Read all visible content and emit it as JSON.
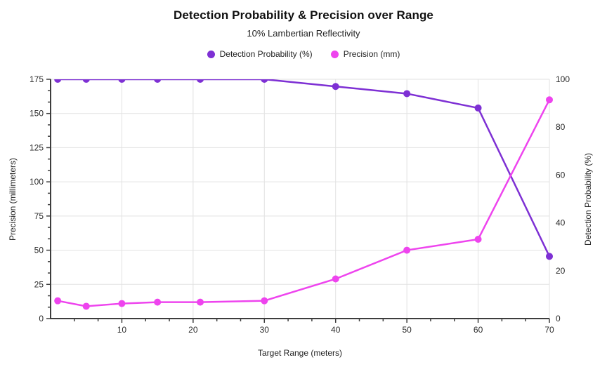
{
  "header": {
    "title": "Detection Probability & Precision over Range",
    "subtitle": "10% Lambertian Reflectivity"
  },
  "chart_data": {
    "type": "line",
    "title": "Detection Probability & Precision over Range",
    "subtitle": "10% Lambertian Reflectivity",
    "xlabel": "Target Range (meters)",
    "ylabel_left": "Precision (millimeters)",
    "ylabel_right": "Detection Probability (%)",
    "x": [
      1,
      5,
      10,
      15,
      21,
      30,
      40,
      50,
      60,
      70
    ],
    "series": [
      {
        "name": "Detection Probability (%)",
        "axis": "right",
        "color": "#7e30d4",
        "values": [
          100,
          100,
          100,
          100,
          100,
          100,
          97,
          94,
          88,
          26
        ]
      },
      {
        "name": "Precision (mm)",
        "axis": "left",
        "color": "#ee44ee",
        "values": [
          13,
          9,
          11,
          12,
          12,
          13,
          29,
          50,
          58,
          160
        ]
      }
    ],
    "xlim": [
      0,
      70
    ],
    "ylim_left": [
      0,
      175
    ],
    "ylim_right": [
      0,
      100
    ],
    "x_major_ticks": [
      10,
      20,
      30,
      40,
      50,
      60,
      70
    ],
    "x_minor_step": 3.3333,
    "y_left_major_ticks": [
      0,
      25,
      50,
      75,
      100,
      125,
      150,
      175
    ],
    "y_left_minor_step": 8.3333,
    "y_right_major_ticks": [
      0,
      20,
      40,
      60,
      80,
      100
    ],
    "grid": true,
    "legend_position": "top-center",
    "colors": {
      "grid": "#e2e2e2",
      "axis": "#3d3d3d",
      "tick_label": "#2b2b2b"
    }
  }
}
